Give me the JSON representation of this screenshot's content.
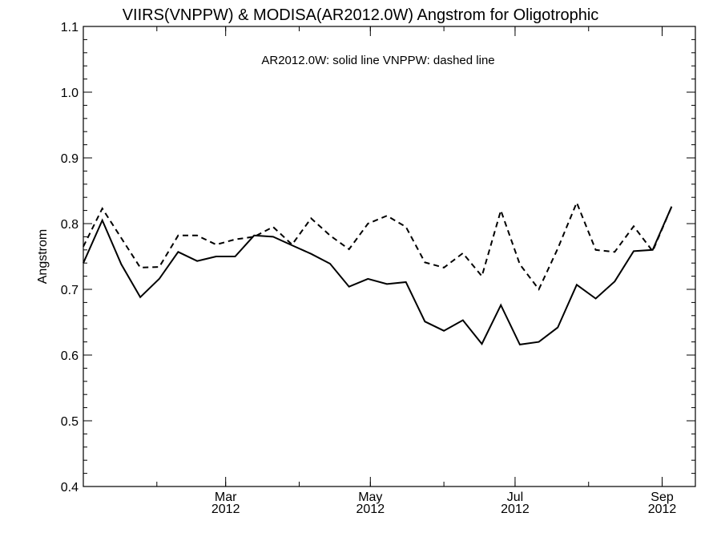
{
  "chart_data": {
    "type": "line",
    "title": "VIIRS(VNPPW) & MODISA(AR2012.0W)  Angstrom for Oligotrophic",
    "annotation": "AR2012.0W: solid line   VNPPW: dashed line",
    "ylabel": "Angstrom",
    "xlabel": "",
    "ylim": [
      0.4,
      1.1
    ],
    "yticks": [
      "0.4",
      "0.5",
      "0.6",
      "0.7",
      "0.8",
      "0.9",
      "1.0",
      "1.1"
    ],
    "xlim": [
      "2012-01-01",
      "2012-09-15"
    ],
    "xticks": [
      {
        "date": "2012-03-01",
        "month": "Mar",
        "year": "2012"
      },
      {
        "date": "2012-05-01",
        "month": "May",
        "year": "2012"
      },
      {
        "date": "2012-07-01",
        "month": "Jul",
        "year": "2012"
      },
      {
        "date": "2012-09-01",
        "month": "Sep",
        "year": "2012"
      }
    ],
    "x": [
      "2012-01-01",
      "2012-01-09",
      "2012-01-17",
      "2012-01-25",
      "2012-02-02",
      "2012-02-10",
      "2012-02-18",
      "2012-02-26",
      "2012-03-05",
      "2012-03-13",
      "2012-03-21",
      "2012-03-29",
      "2012-04-06",
      "2012-04-14",
      "2012-04-22",
      "2012-04-30",
      "2012-05-08",
      "2012-05-16",
      "2012-05-24",
      "2012-06-01",
      "2012-06-09",
      "2012-06-17",
      "2012-06-25",
      "2012-07-03",
      "2012-07-11",
      "2012-07-19",
      "2012-07-27",
      "2012-08-04",
      "2012-08-12",
      "2012-08-20",
      "2012-08-28",
      "2012-09-05",
      "2012-09-13"
    ],
    "series": [
      {
        "style": "solid",
        "color": "#000000",
        "values": [
          0.74,
          0.805,
          0.738,
          0.688,
          0.716,
          0.757,
          0.743,
          0.75,
          0.75,
          0.782,
          0.78,
          0.767,
          0.754,
          0.739,
          0.704,
          0.716,
          0.708,
          0.711,
          0.651,
          0.637,
          0.653,
          0.617,
          0.676,
          0.616,
          0.62,
          0.642,
          0.707,
          0.686,
          0.712,
          0.758,
          0.76,
          0.826,
          null
        ]
      },
      {
        "style": "dashed",
        "color": "#000000",
        "values": [
          0.765,
          0.823,
          0.778,
          0.733,
          0.734,
          0.782,
          0.782,
          0.768,
          0.776,
          0.78,
          0.795,
          0.768,
          0.808,
          0.782,
          0.761,
          0.8,
          0.812,
          0.795,
          0.741,
          0.733,
          0.755,
          0.72,
          0.82,
          0.738,
          0.7,
          0.762,
          0.832,
          0.76,
          0.757,
          0.796,
          0.758,
          0.826,
          null
        ]
      }
    ],
    "grid": false,
    "legend": "none"
  }
}
